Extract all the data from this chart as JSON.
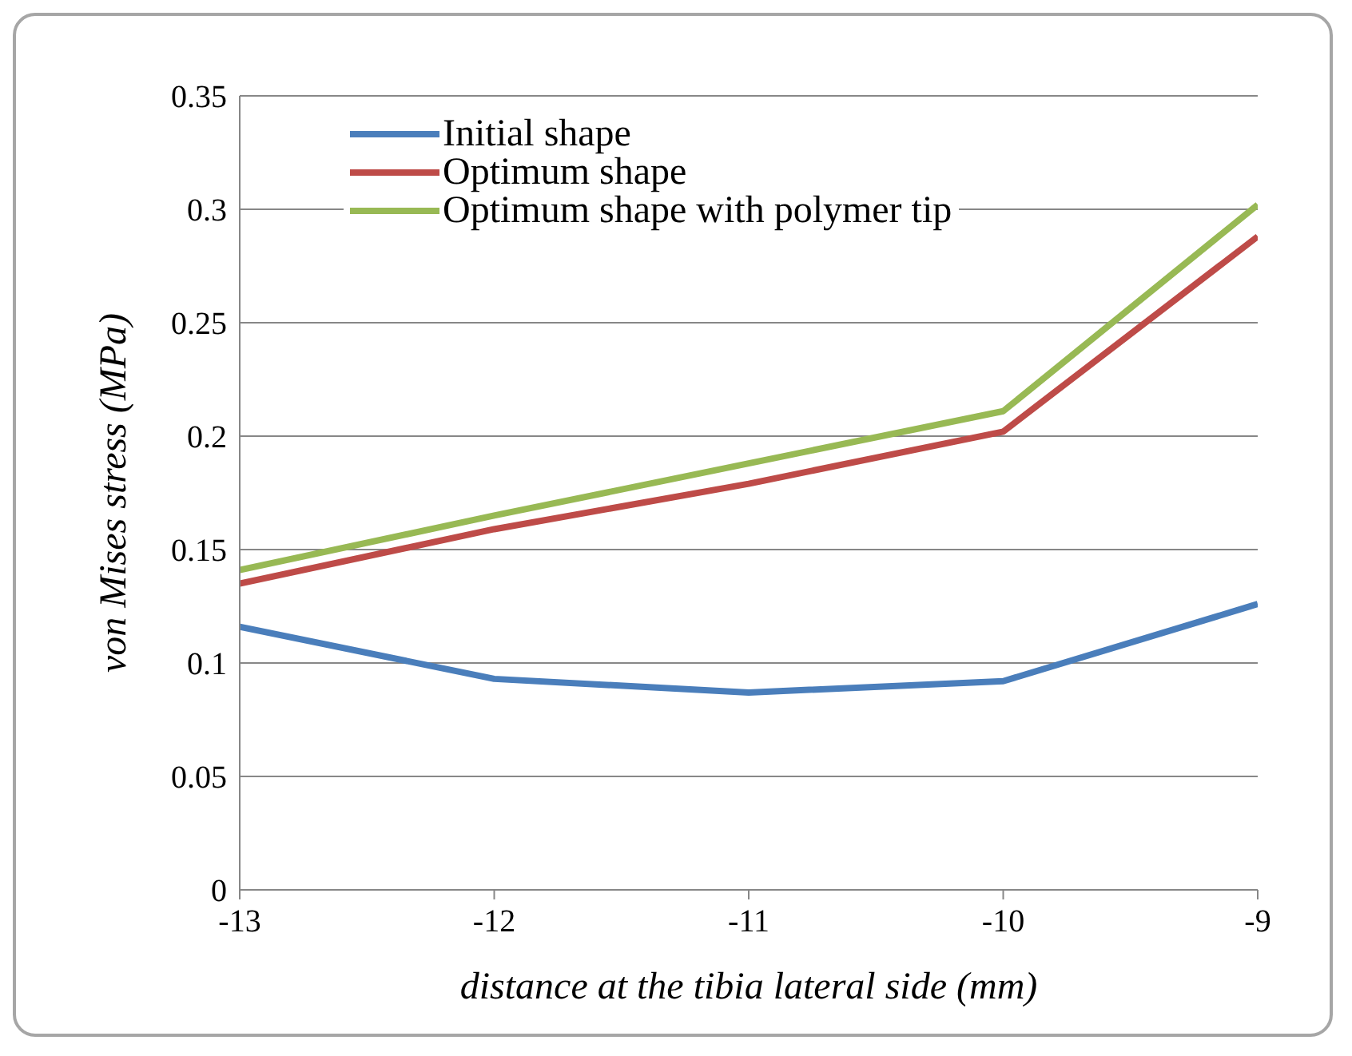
{
  "chart_data": {
    "type": "line",
    "xlabel": "distance at the tibia lateral side (mm)",
    "ylabel": "von Mises stress (MPa)",
    "x": [
      -13,
      -12,
      -11,
      -10,
      -9
    ],
    "series": [
      {
        "name": "Initial shape",
        "color": "#4a7ebb",
        "values": [
          0.116,
          0.093,
          0.087,
          0.092,
          0.126
        ]
      },
      {
        "name": "Optimum shape",
        "color": "#be4b48",
        "values": [
          0.135,
          0.159,
          0.179,
          0.202,
          0.288
        ]
      },
      {
        "name": "Optimum shape with polymer tip",
        "color": "#98b954",
        "values": [
          0.141,
          0.165,
          0.188,
          0.211,
          0.302
        ]
      }
    ],
    "xlim": [
      -13,
      -9
    ],
    "xticks": [
      -13,
      -12,
      -11,
      -10,
      -9
    ],
    "ylim": [
      0,
      0.35
    ],
    "yticks": [
      0,
      0.05,
      0.1,
      0.15,
      0.2,
      0.25,
      0.3,
      0.35
    ],
    "grid": "y",
    "legend": "top left",
    "marker": "none",
    "line_style": "solid"
  }
}
